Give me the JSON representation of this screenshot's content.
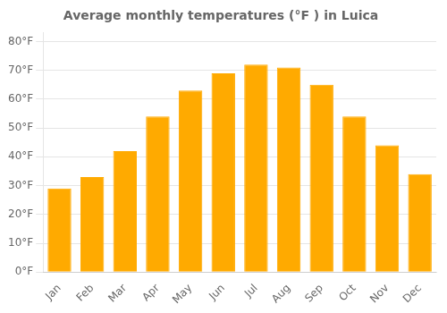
{
  "chart_data": {
    "type": "bar",
    "title": "Average monthly temperatures (°F ) in Luica",
    "categories": [
      "Jan",
      "Feb",
      "Mar",
      "Apr",
      "May",
      "Jun",
      "Jul",
      "Aug",
      "Sep",
      "Oct",
      "Nov",
      "Dec"
    ],
    "values": [
      29,
      33,
      42,
      54,
      63,
      69,
      72,
      71,
      65,
      54,
      44,
      34
    ],
    "color": "#FFAA00",
    "ylim": [
      0,
      83
    ],
    "yticks": [
      {
        "value": 0,
        "label": "0°F"
      },
      {
        "value": 10,
        "label": "10°F"
      },
      {
        "value": 20,
        "label": "20°F"
      },
      {
        "value": 30,
        "label": "30°F"
      },
      {
        "value": 40,
        "label": "40°F"
      },
      {
        "value": 50,
        "label": "50°F"
      },
      {
        "value": 60,
        "label": "60°F"
      },
      {
        "value": 70,
        "label": "70°F"
      },
      {
        "value": 80,
        "label": "80°F"
      }
    ],
    "grid": true
  }
}
